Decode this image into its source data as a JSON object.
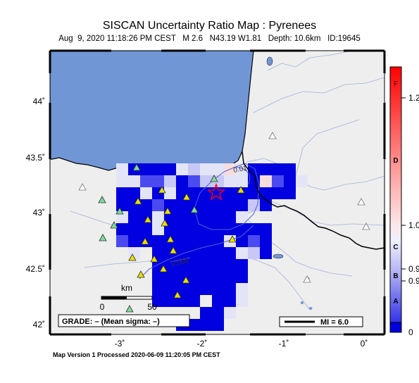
{
  "header": {
    "title": "SISCAN Uncertainty Ratio Map : Pyrenees",
    "subtitle": "Aug  9, 2020 11:18:26 PM CEST   M 2.6   N43.19 W1.81   Depth: 10.6km   ID:19645"
  },
  "map": {
    "lat_labels": [
      "44˚",
      "43.5˚",
      "43˚",
      "42.5˚",
      "42˚"
    ],
    "lon_labels": [
      "-3˚",
      "-2˚",
      "-1˚",
      "0˚"
    ],
    "contour_labels": [
      "0.01",
      "0.005"
    ],
    "scale_label_km": "km",
    "scale_tick_0": "0",
    "scale_tick_50": "50",
    "grade_text": "GRADE: – (Mean sigma: –)",
    "mi_text": "MI = 6.0",
    "colors": {
      "sea": "#7096d6",
      "land": "#eeeeee",
      "high": "#0000e0",
      "mid": "#4a4af0",
      "low": "#c8c8f6",
      "pale": "#e4e4f8",
      "pink": "#f6dcdc",
      "station": "#e8e000",
      "station_alt": "#7fdc9a",
      "epicenter": "#ff0000"
    }
  },
  "colorbar": {
    "letters": [
      "F",
      "D",
      "C",
      "B",
      "A"
    ],
    "values": [
      "1.2",
      "1.0",
      "0.9",
      "0.9",
      "0"
    ]
  },
  "footer": {
    "text": "Map Version 1 Processed 2020-06-09 11:20:05 PM CEST"
  }
}
